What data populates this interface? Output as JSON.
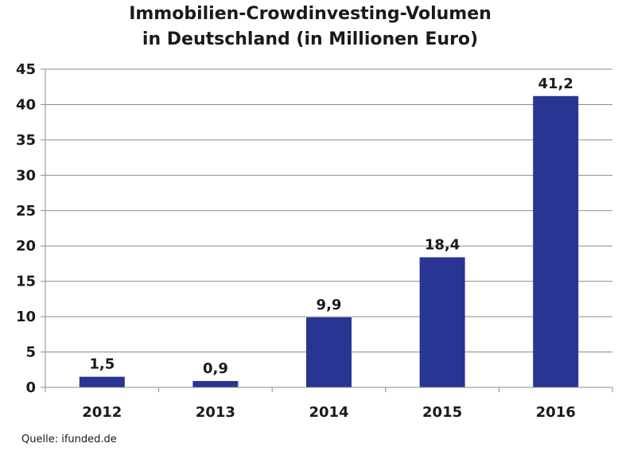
{
  "chart_data": {
    "type": "bar",
    "title_lines": [
      "Immobilien-Crowdinvesting-Volumen",
      "in Deutschland (in Millionen Euro)"
    ],
    "categories": [
      "2012",
      "2013",
      "2014",
      "2015",
      "2016"
    ],
    "values": [
      1.5,
      0.9,
      9.9,
      18.4,
      41.2
    ],
    "data_labels": [
      "1,5",
      "0,9",
      "9,9",
      "18,4",
      "41,2"
    ],
    "ylim": [
      0,
      45
    ],
    "yticks": [
      0,
      5,
      10,
      15,
      20,
      25,
      30,
      35,
      40,
      45
    ],
    "grid": true,
    "legend": "none",
    "bar_color": "#283593",
    "source": "Quelle: ifunded.de"
  }
}
